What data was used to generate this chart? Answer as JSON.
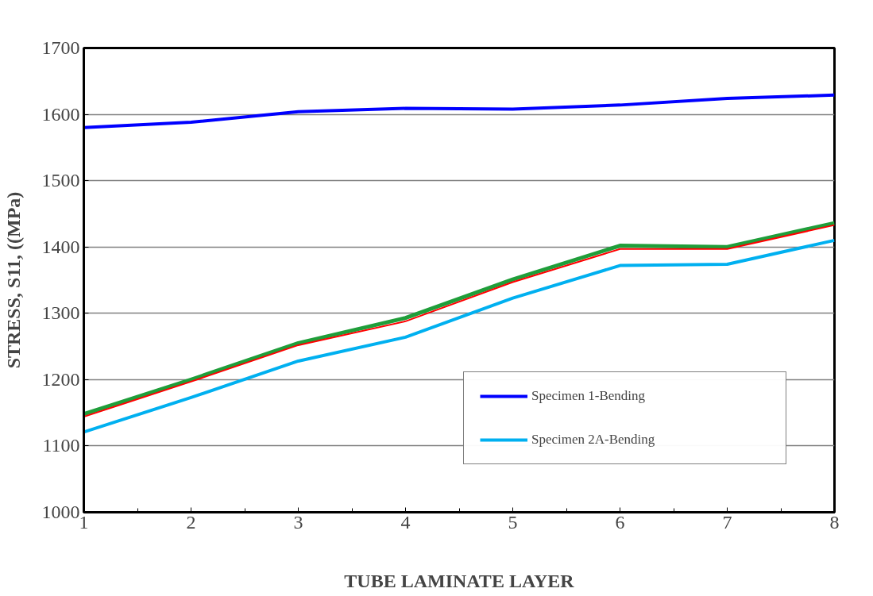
{
  "chart_data": {
    "type": "line",
    "xlabel": "TUBE LAMINATE LAYER",
    "ylabel": "STRESS, S11, ((MPa)",
    "x": [
      1,
      2,
      3,
      4,
      5,
      6,
      7,
      8
    ],
    "series": [
      {
        "name": "Specimen 1-Bending",
        "color": "#0000ff",
        "values": [
          1580,
          1588,
          1604,
          1609,
          1608,
          1614,
          1624,
          1629
        ]
      },
      {
        "color": "#1f9e3a",
        "values": [
          1148,
          1200,
          1255,
          1293,
          1351,
          1402,
          1400,
          1436
        ]
      },
      {
        "color": "#ff0000",
        "values": [
          1144,
          1197,
          1252,
          1288,
          1347,
          1397,
          1397,
          1433
        ]
      },
      {
        "name": "Specimen 2A-Bending",
        "color": "#00b0f0",
        "values": [
          1121,
          1173,
          1228,
          1264,
          1323,
          1372,
          1374,
          1410
        ]
      }
    ],
    "xlim": [
      1,
      8
    ],
    "xticks": [
      1,
      2,
      3,
      4,
      5,
      6,
      7,
      8
    ],
    "ylim": [
      1000,
      1700
    ],
    "yticks": [
      1000,
      1100,
      1200,
      1300,
      1400,
      1500,
      1600,
      1700
    ],
    "grid": "y",
    "legend": "bottom right",
    "marker": "none",
    "line_style": "solid"
  }
}
